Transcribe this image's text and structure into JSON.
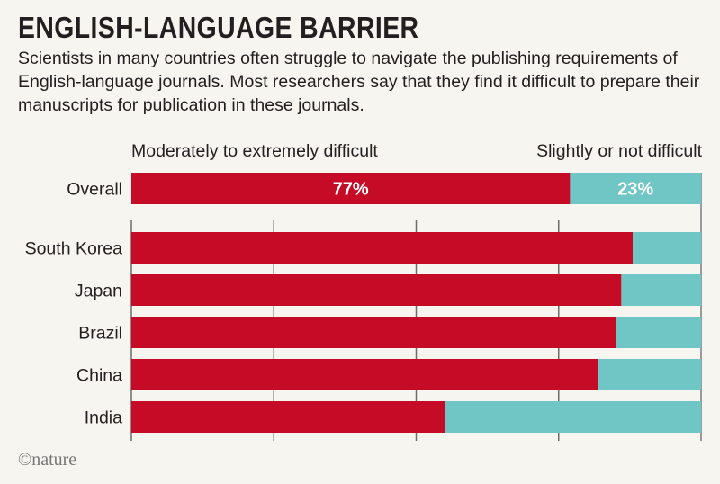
{
  "title": "ENGLISH-LANGUAGE BARRIER",
  "subtitle": "Scientists in many countries often struggle to navigate the publishing requirements of English-language journals. Most researchers say that they find it difficult to prepare their manuscripts for publication in these journals.",
  "credit": "©nature",
  "colors": {
    "difficult": "#c50b26",
    "not_difficult": "#70c5c5",
    "grid": "#6d6d6d"
  },
  "chart_data": {
    "type": "bar",
    "orientation": "horizontal-stacked",
    "title": "ENGLISH-LANGUAGE BARRIER",
    "legend": [
      "Moderately to extremely difficult",
      "Slightly or not difficult"
    ],
    "legend_placement": "top",
    "categories": [
      "Overall",
      "South Korea",
      "Japan",
      "Brazil",
      "China",
      "India"
    ],
    "series": [
      {
        "name": "Moderately to extremely difficult",
        "values": [
          77,
          88,
          86,
          85,
          82,
          55
        ]
      },
      {
        "name": "Slightly or not difficult",
        "values": [
          23,
          12,
          14,
          15,
          18,
          45
        ]
      }
    ],
    "data_labels": {
      "Overall": [
        "77%",
        "23%"
      ]
    },
    "xlim": [
      0,
      100
    ],
    "xticks": [
      0,
      25,
      50,
      75,
      100
    ],
    "grid": true
  }
}
